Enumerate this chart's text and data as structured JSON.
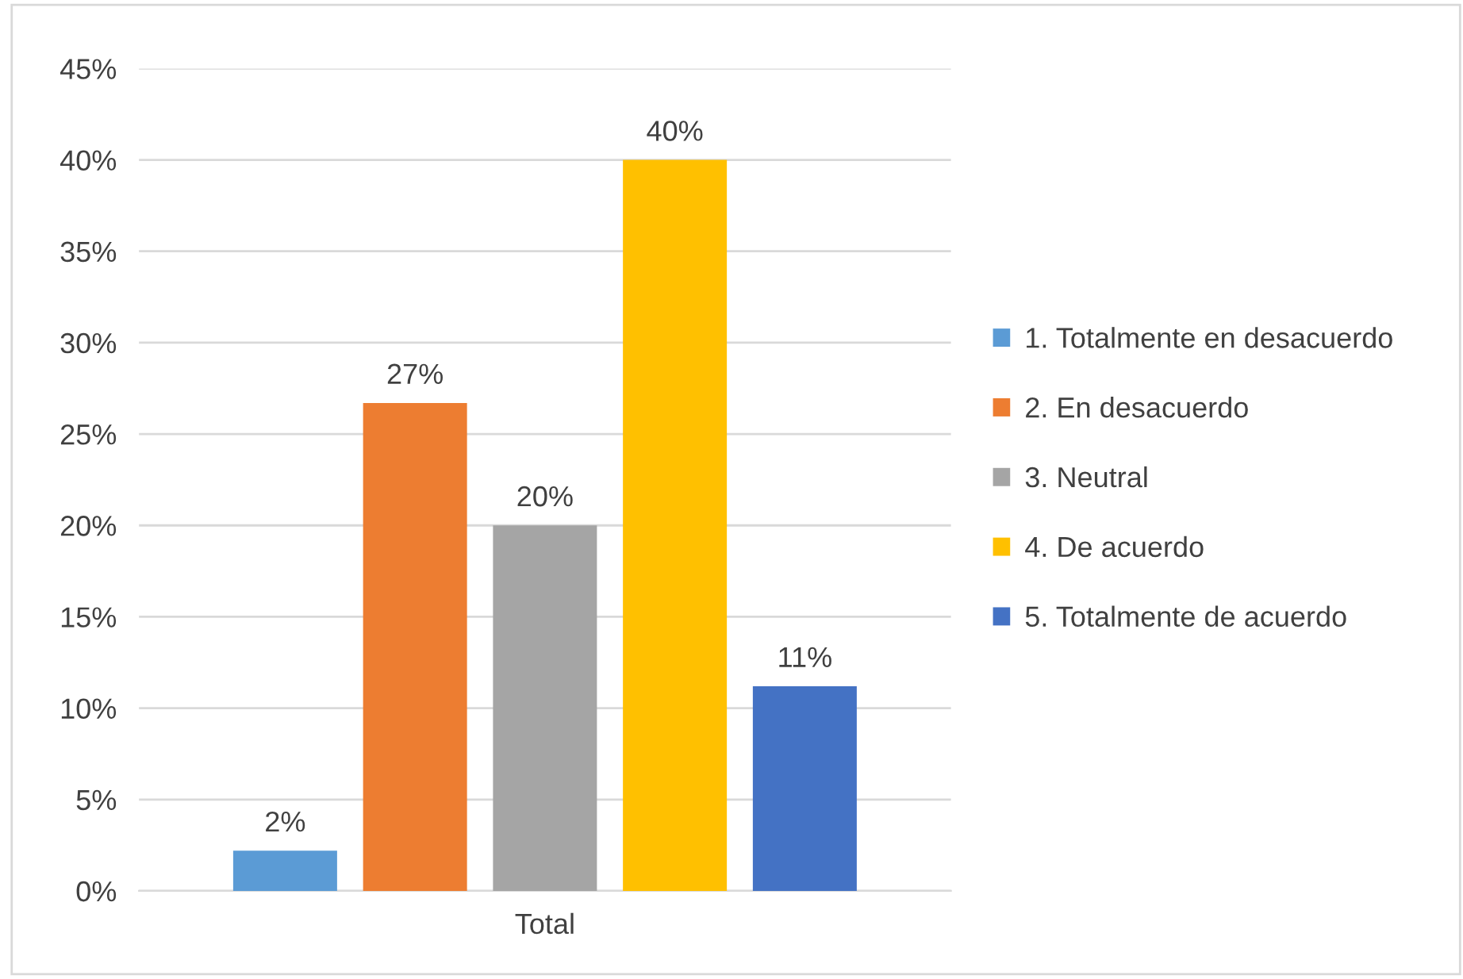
{
  "chart_data": {
    "type": "bar",
    "categories": [
      "Total"
    ],
    "series": [
      {
        "name": "1. Totalmente en desacuerdo",
        "color": "#5b9bd5",
        "values": [
          2.2
        ],
        "value_labels": [
          "2%"
        ]
      },
      {
        "name": "2. En desacuerdo",
        "color": "#ed7d31",
        "values": [
          26.7
        ],
        "value_labels": [
          "27%"
        ]
      },
      {
        "name": "3. Neutral",
        "color": "#a5a5a5",
        "values": [
          20.0
        ],
        "value_labels": [
          "20%"
        ]
      },
      {
        "name": "4. De acuerdo",
        "color": "#ffc000",
        "values": [
          40.0
        ],
        "value_labels": [
          "40%"
        ]
      },
      {
        "name": "5. Totalmente de acuerdo",
        "color": "#4472c4",
        "values": [
          11.2
        ],
        "value_labels": [
          "11%"
        ]
      }
    ],
    "ylim": [
      0,
      45
    ],
    "yticks": [
      {
        "value": 0,
        "label": "0%"
      },
      {
        "value": 5,
        "label": "5%"
      },
      {
        "value": 10,
        "label": "10%"
      },
      {
        "value": 15,
        "label": "15%"
      },
      {
        "value": 20,
        "label": "20%"
      },
      {
        "value": 25,
        "label": "25%"
      },
      {
        "value": 30,
        "label": "30%"
      },
      {
        "value": 35,
        "label": "35%"
      },
      {
        "value": 40,
        "label": "40%"
      },
      {
        "value": 45,
        "label": "45%"
      }
    ],
    "grid": "y",
    "legend": "right"
  }
}
